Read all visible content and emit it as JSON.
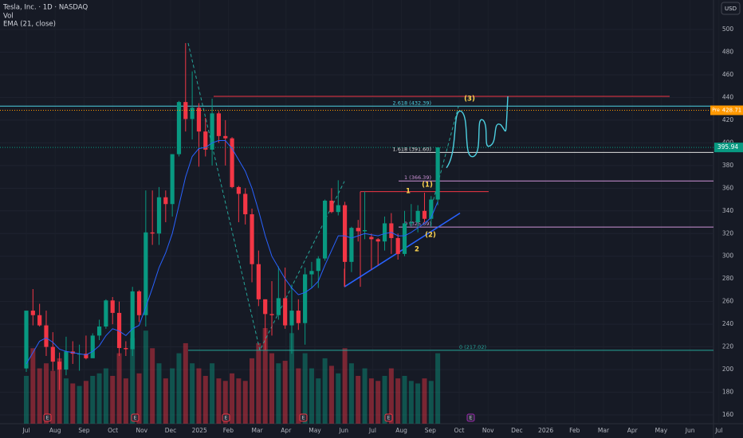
{
  "chart_data": {
    "type": "candlestick",
    "symbol": "Tesla, Inc. · 1D · NASDAQ",
    "volume_label": "Vol",
    "indicator_label": "EMA (21, close)",
    "currency": "USD",
    "x_axis_labels": [
      "Jul",
      "Aug",
      "Sep",
      "Oct",
      "Nov",
      "Dec",
      "2025",
      "Feb",
      "Mar",
      "Apr",
      "May",
      "Jun",
      "Jul",
      "Aug",
      "Sep",
      "Oct",
      "Nov",
      "Dec",
      "2026",
      "Feb",
      "Mar",
      "Apr",
      "May",
      "Jun",
      "Jul"
    ],
    "ylim": [
      152.3,
      526
    ],
    "yticks": [
      160,
      180,
      200,
      220,
      240,
      260,
      280,
      300,
      320,
      340,
      360,
      380,
      400,
      420,
      440,
      460,
      480,
      500
    ],
    "open": [
      201,
      252,
      248,
      239,
      220,
      207,
      200,
      216,
      214,
      214,
      210,
      230,
      238,
      261,
      250,
      219,
      218,
      269,
      248,
      321,
      320,
      352,
      346,
      390,
      436,
      421,
      431,
      410,
      394,
      426,
      406,
      404,
      361,
      355,
      337,
      293,
      262,
      249,
      248,
      263,
      239,
      252,
      241,
      284,
      287,
      298,
      349,
      339,
      345,
      295,
      325,
      322,
      317,
      315,
      313,
      329,
      316,
      302,
      329,
      330,
      340,
      333,
      350
    ],
    "high": [
      252,
      271,
      258,
      252,
      233,
      215,
      229,
      225,
      222,
      230,
      232,
      244,
      262,
      264,
      260,
      225,
      273,
      270,
      358,
      358,
      361,
      358,
      390,
      437,
      488,
      463,
      435,
      422,
      439,
      428,
      420,
      405,
      362,
      360,
      342,
      305,
      262,
      278,
      291,
      290,
      275,
      262,
      290,
      295,
      300,
      350,
      360,
      367,
      348,
      326,
      332,
      357,
      320,
      316,
      335,
      338,
      320,
      340,
      346,
      345,
      356,
      353,
      396
    ],
    "low": [
      198,
      239,
      238,
      212,
      199,
      182,
      195,
      205,
      199,
      209,
      212,
      226,
      236,
      240,
      212,
      212,
      212,
      242,
      238,
      310,
      310,
      330,
      335,
      388,
      410,
      403,
      379,
      388,
      380,
      400,
      380,
      360,
      330,
      328,
      277,
      256,
      217,
      230,
      244,
      236,
      214,
      235,
      222,
      272,
      272,
      296,
      338,
      336,
      273,
      286,
      313,
      315,
      288,
      292,
      305,
      302,
      297,
      300,
      326,
      321,
      330,
      326,
      345
    ],
    "close": [
      252,
      248,
      239,
      220,
      207,
      200,
      216,
      214,
      214,
      210,
      230,
      238,
      261,
      250,
      219,
      218,
      269,
      248,
      321,
      320,
      352,
      346,
      390,
      436,
      421,
      431,
      410,
      394,
      426,
      406,
      404,
      361,
      355,
      337,
      293,
      262,
      249,
      248,
      263,
      239,
      252,
      241,
      284,
      287,
      298,
      349,
      339,
      345,
      295,
      325,
      322,
      323,
      315,
      313,
      329,
      316,
      302,
      329,
      330,
      340,
      333,
      350,
      396
    ],
    "volume": [
      95,
      150,
      110,
      120,
      105,
      130,
      90,
      80,
      75,
      85,
      95,
      100,
      110,
      95,
      140,
      90,
      170,
      100,
      185,
      150,
      120,
      90,
      110,
      140,
      160,
      120,
      110,
      95,
      120,
      90,
      85,
      100,
      90,
      85,
      130,
      160,
      190,
      140,
      120,
      125,
      180,
      110,
      140,
      110,
      90,
      130,
      115,
      100,
      150,
      120,
      95,
      110,
      90,
      85,
      95,
      110,
      90,
      95,
      85,
      80,
      90,
      85,
      140
    ],
    "ema": [
      205,
      215,
      225,
      228,
      224,
      218,
      216,
      215,
      214,
      213,
      216,
      221,
      230,
      236,
      234,
      230,
      236,
      239,
      255,
      272,
      290,
      303,
      320,
      345,
      370,
      388,
      395,
      396,
      400,
      402,
      402,
      395,
      385,
      375,
      360,
      340,
      318,
      300,
      290,
      280,
      272,
      266,
      268,
      272,
      278,
      292,
      305,
      318,
      318,
      316,
      318,
      320,
      319,
      318,
      320,
      321,
      318,
      318,
      321,
      325,
      329,
      334,
      348
    ],
    "up_color": "#089981",
    "down_color": "#f23645",
    "ema_color": "#2962ff",
    "fib_levels": [
      {
        "label": "2.618 (432.39)",
        "value": 432.39
      },
      {
        "label": "1.618 (391.60)",
        "value": 391.6
      },
      {
        "label": "1 (366.39)",
        "value": 366.39
      },
      {
        "label": "0 (325.69)",
        "value": 325.69
      },
      {
        "label": "0 (217.02)",
        "value": 217.02
      }
    ],
    "resistance_levels": [
      441,
      357
    ],
    "trendline": [
      273,
      338
    ],
    "wave_labels": [
      "(1)",
      "(2)",
      "(3)",
      "1",
      "2"
    ],
    "last_price": 395.94,
    "pre_market": {
      "label": "Pre",
      "value": 428.71
    },
    "earnings_marker": "E"
  }
}
